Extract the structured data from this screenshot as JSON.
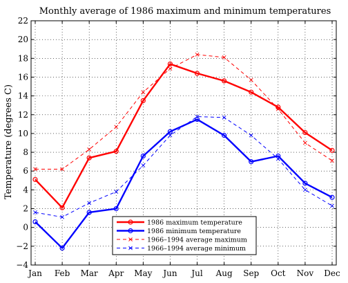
{
  "chart_data": {
    "type": "line",
    "title": "Monthly average of 1986 maximum and minimum temperatures",
    "xlabel": "",
    "ylabel": "Temperature (degrees C)",
    "categories": [
      "Jan",
      "Feb",
      "Mar",
      "Apr",
      "May",
      "Jun",
      "Jul",
      "Aug",
      "Sep",
      "Oct",
      "Nov",
      "Dec"
    ],
    "ylim": [
      -4,
      22
    ],
    "yticks": [
      -4,
      -2,
      0,
      2,
      4,
      6,
      8,
      10,
      12,
      14,
      16,
      18,
      20,
      22
    ],
    "grid": true,
    "legend_position": "bottom-center",
    "series": [
      {
        "name": "1986 maximum temperature",
        "values": [
          5.1,
          2.1,
          7.4,
          8.1,
          13.5,
          17.4,
          16.4,
          15.6,
          14.4,
          12.8,
          10.1,
          8.2
        ],
        "color": "#ff0000",
        "line_style": "solid",
        "marker": "circle"
      },
      {
        "name": "1986 minimum temperature",
        "values": [
          0.6,
          -2.2,
          1.6,
          2.0,
          7.6,
          10.2,
          11.5,
          9.8,
          7.0,
          7.6,
          4.7,
          3.2
        ],
        "color": "#0000ff",
        "line_style": "solid",
        "marker": "circle"
      },
      {
        "name": "1966–1994 average maximum",
        "values": [
          6.2,
          6.2,
          8.3,
          10.7,
          14.4,
          16.9,
          18.4,
          18.1,
          15.7,
          12.6,
          9.0,
          7.1
        ],
        "color": "#ff0000",
        "line_style": "dashed",
        "marker": "x"
      },
      {
        "name": "1966–1994 average minimum",
        "values": [
          1.6,
          1.1,
          2.6,
          3.8,
          6.6,
          9.8,
          11.8,
          11.7,
          9.8,
          7.3,
          4.0,
          2.3
        ],
        "color": "#0000ff",
        "line_style": "dashed",
        "marker": "x"
      }
    ]
  }
}
